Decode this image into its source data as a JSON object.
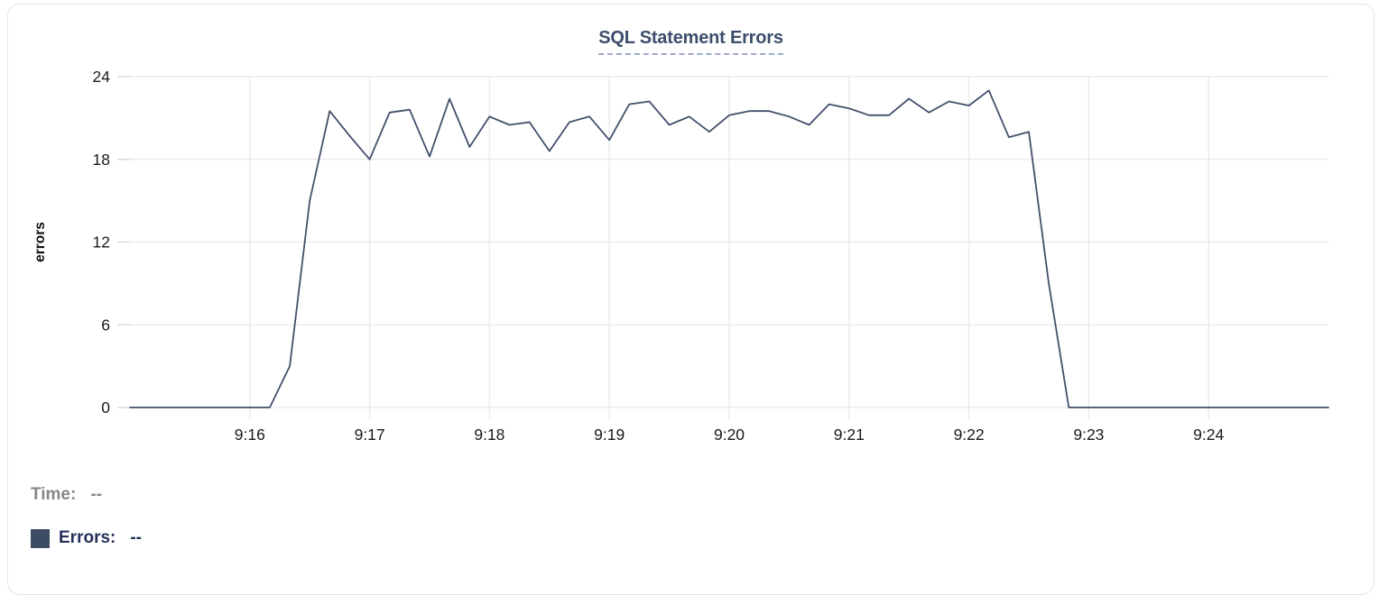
{
  "chart_data": {
    "type": "line",
    "title": "SQL Statement Errors",
    "ylabel": "errors",
    "ylim": [
      0,
      24
    ],
    "y_ticks": [
      0,
      6,
      12,
      18,
      24
    ],
    "grid": true,
    "x_axis": {
      "start_time": "9:15:00",
      "end_time": "9:25:00",
      "interval_seconds": 10,
      "tick_labels": [
        "9:16",
        "9:17",
        "9:18",
        "9:19",
        "9:20",
        "9:21",
        "9:22",
        "9:23",
        "9:24"
      ],
      "tick_seconds": [
        60,
        120,
        180,
        240,
        300,
        360,
        420,
        480,
        540
      ],
      "range_seconds": [
        0,
        600
      ]
    },
    "series": [
      {
        "name": "Errors",
        "color": "#42506b",
        "x_seconds": [
          0,
          10,
          20,
          30,
          40,
          50,
          60,
          70,
          80,
          90,
          100,
          110,
          120,
          130,
          140,
          150,
          160,
          170,
          180,
          190,
          200,
          210,
          220,
          230,
          240,
          250,
          260,
          270,
          280,
          290,
          300,
          310,
          320,
          330,
          340,
          350,
          360,
          370,
          380,
          390,
          400,
          410,
          420,
          430,
          440,
          450,
          460,
          470,
          480,
          490,
          500,
          510,
          520,
          530,
          540,
          550,
          560,
          570,
          580,
          590,
          600
        ],
        "values": [
          0,
          0,
          0,
          0,
          0,
          0,
          0,
          0,
          3,
          15,
          21.5,
          19.7,
          18,
          21.4,
          21.6,
          18.2,
          22.4,
          18.9,
          21.1,
          20.5,
          20.7,
          18.6,
          20.7,
          21.1,
          19.4,
          22,
          22.2,
          20.5,
          21.1,
          20,
          21.2,
          21.5,
          21.5,
          21.1,
          20.5,
          22,
          21.7,
          21.2,
          21.2,
          22.4,
          21.4,
          22.2,
          21.9,
          23,
          19.6,
          20,
          9,
          0,
          0,
          0,
          0,
          0,
          0,
          0,
          0,
          0,
          0,
          0,
          0,
          0,
          0
        ]
      }
    ]
  },
  "readout": {
    "time_label": "Time:",
    "time_value": "--",
    "errors_label": "Errors:",
    "errors_value": "--",
    "swatch_color": "#3e4c63"
  },
  "colors": {
    "grid": "#ececee",
    "tick": "#d9dadd",
    "axis_text": "#17191d",
    "line": "#42506b",
    "title": "#3d4e6d",
    "title_underline": "#9fabc6",
    "muted_text": "#85878c",
    "navy_text": "#23305a",
    "card_border": "#e4e5e8"
  }
}
